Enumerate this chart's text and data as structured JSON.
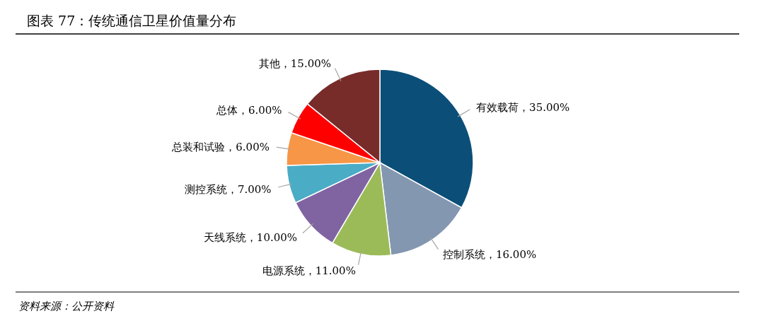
{
  "chart_data": {
    "type": "pie",
    "title": "图表 77：传统通信卫星价值量分布",
    "categories": [
      "有效载荷",
      "控制系统",
      "电源系统",
      "天线系统",
      "测控系统",
      "总装和试验",
      "总体",
      "其他"
    ],
    "values": [
      35,
      16,
      11,
      10,
      7,
      6,
      6,
      15
    ],
    "value_labels": [
      "35.00%",
      "16.00%",
      "11.00%",
      "10.00%",
      "7.00%",
      "6.00%",
      "6.00%",
      "15.00%"
    ],
    "colors": [
      "#0b4f78",
      "#8497b0",
      "#9bbb59",
      "#8064a2",
      "#4bacc6",
      "#f79646",
      "#ff0000",
      "#772c2a"
    ],
    "annotations": [
      "资料来源：公开资料"
    ]
  }
}
